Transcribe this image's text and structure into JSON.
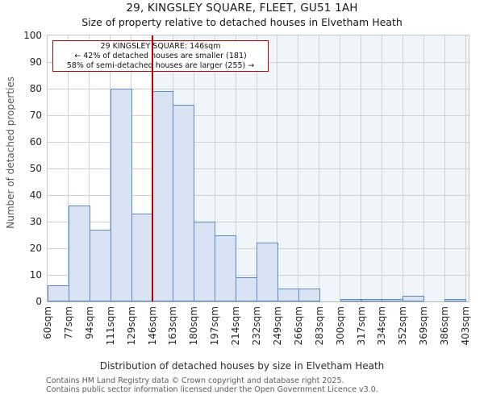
{
  "header": {
    "title": "29, KINGSLEY SQUARE, FLEET, GU51 1AH",
    "subtitle": "Size of property relative to detached houses in Elvetham Heath"
  },
  "annotation": {
    "line1": "29 KINGSLEY SQUARE: 146sqm",
    "line2": "← 42% of detached houses are smaller (181)",
    "line3": "58% of semi-detached houses are larger (255) →"
  },
  "chart_data": {
    "type": "bar",
    "title": "29, KINGSLEY SQUARE, FLEET, GU51 1AH",
    "subtitle": "Size of property relative to detached houses in Elvetham Heath",
    "categories": [
      "60sqm",
      "77sqm",
      "94sqm",
      "111sqm",
      "129sqm",
      "146sqm",
      "163sqm",
      "180sqm",
      "197sqm",
      "214sqm",
      "232sqm",
      "249sqm",
      "266sqm",
      "283sqm",
      "300sqm",
      "317sqm",
      "334sqm",
      "352sqm",
      "369sqm",
      "386sqm",
      "403sqm"
    ],
    "values": [
      6,
      36,
      27,
      80,
      33,
      79,
      74,
      30,
      25,
      9,
      22,
      5,
      5,
      0,
      1,
      1,
      1,
      2,
      0,
      1
    ],
    "xlabel": "Distribution of detached houses by size in Elvetham Heath",
    "ylabel": "Number of detached properties",
    "ylim": [
      0,
      100
    ],
    "yticks": [
      0,
      10,
      20,
      30,
      40,
      50,
      60,
      70,
      80,
      90,
      100
    ],
    "grid": true,
    "legend": false,
    "marker": {
      "x_label": "146sqm",
      "x_index": 5,
      "color": "#b30000"
    },
    "colors": {
      "bar_fill": "#d9e3f3",
      "bar_edge": "#5b8ac6",
      "marker_line": "#b30000",
      "annotation_border": "#bf0000",
      "shade_right_of_marker": "#f0f4fb",
      "gridline": "#d2d2d2"
    }
  },
  "footer": {
    "line1": "Contains HM Land Registry data © Crown copyright and database right 2025.",
    "line2": "Contains public sector information licensed under the Open Government Licence v3.0."
  }
}
